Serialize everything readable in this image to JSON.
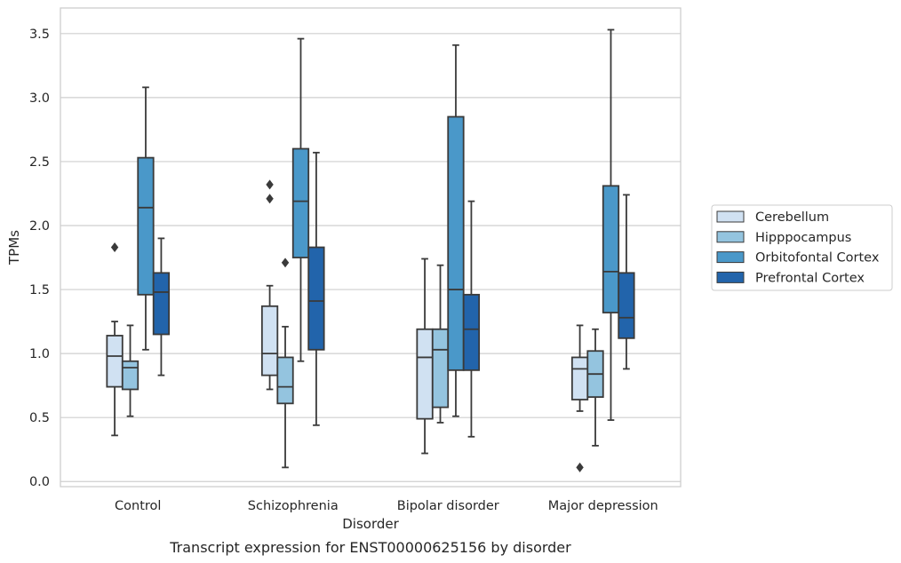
{
  "chart_data": {
    "type": "boxplot",
    "title": "",
    "caption": "Transcript expression for ENST00000625156 by disorder",
    "xlabel": "Disorder",
    "ylabel": "TPMs",
    "ylim": [
      -0.04,
      3.7
    ],
    "yticks": [
      0.0,
      0.5,
      1.0,
      1.5,
      2.0,
      2.5,
      3.0,
      3.5
    ],
    "ytick_labels": [
      "0.0",
      "0.5",
      "1.0",
      "1.5",
      "2.0",
      "2.5",
      "3.0",
      "3.5"
    ],
    "grid": true,
    "legend_position": "right-outside",
    "categories": [
      "Control",
      "Schizophrenia",
      "Bipolar disorder",
      "Major depression"
    ],
    "series": [
      {
        "name": "Cerebellum",
        "color": "#d0e1f2",
        "boxes": [
          {
            "whisker_low": 0.36,
            "q1": 0.74,
            "median": 0.98,
            "q3": 1.14,
            "whisker_high": 1.25,
            "outliers": [
              1.83
            ]
          },
          {
            "whisker_low": 0.72,
            "q1": 0.83,
            "median": 1.0,
            "q3": 1.37,
            "whisker_high": 1.53,
            "outliers": [
              2.21,
              2.32
            ]
          },
          {
            "whisker_low": 0.22,
            "q1": 0.49,
            "median": 0.97,
            "q3": 1.19,
            "whisker_high": 1.74,
            "outliers": []
          },
          {
            "whisker_low": 0.55,
            "q1": 0.64,
            "median": 0.88,
            "q3": 0.97,
            "whisker_high": 1.22,
            "outliers": [
              0.11
            ]
          }
        ]
      },
      {
        "name": "Hipppocampus",
        "color": "#94c4df",
        "boxes": [
          {
            "whisker_low": 0.51,
            "q1": 0.72,
            "median": 0.89,
            "q3": 0.94,
            "whisker_high": 1.22,
            "outliers": []
          },
          {
            "whisker_low": 0.11,
            "q1": 0.61,
            "median": 0.74,
            "q3": 0.97,
            "whisker_high": 1.21,
            "outliers": [
              1.71
            ]
          },
          {
            "whisker_low": 0.46,
            "q1": 0.58,
            "median": 1.03,
            "q3": 1.19,
            "whisker_high": 1.69,
            "outliers": []
          },
          {
            "whisker_low": 0.28,
            "q1": 0.66,
            "median": 0.84,
            "q3": 1.02,
            "whisker_high": 1.19,
            "outliers": []
          }
        ]
      },
      {
        "name": "Orbitofontal Cortex",
        "color": "#4a98c9",
        "boxes": [
          {
            "whisker_low": 1.03,
            "q1": 1.46,
            "median": 2.14,
            "q3": 2.53,
            "whisker_high": 3.08,
            "outliers": []
          },
          {
            "whisker_low": 0.94,
            "q1": 1.75,
            "median": 2.19,
            "q3": 2.6,
            "whisker_high": 3.46,
            "outliers": []
          },
          {
            "whisker_low": 0.51,
            "q1": 0.87,
            "median": 1.5,
            "q3": 2.85,
            "whisker_high": 3.41,
            "outliers": []
          },
          {
            "whisker_low": 0.48,
            "q1": 1.32,
            "median": 1.64,
            "q3": 2.31,
            "whisker_high": 3.53,
            "outliers": []
          }
        ]
      },
      {
        "name": "Prefrontal Cortex",
        "color": "#2264ab",
        "boxes": [
          {
            "whisker_low": 0.83,
            "q1": 1.15,
            "median": 1.48,
            "q3": 1.63,
            "whisker_high": 1.9,
            "outliers": []
          },
          {
            "whisker_low": 0.44,
            "q1": 1.03,
            "median": 1.41,
            "q3": 1.83,
            "whisker_high": 2.57,
            "outliers": []
          },
          {
            "whisker_low": 0.35,
            "q1": 0.87,
            "median": 1.19,
            "q3": 1.46,
            "whisker_high": 2.19,
            "outliers": []
          },
          {
            "whisker_low": 0.88,
            "q1": 1.12,
            "median": 1.28,
            "q3": 1.63,
            "whisker_high": 2.24,
            "outliers": []
          }
        ]
      }
    ]
  }
}
